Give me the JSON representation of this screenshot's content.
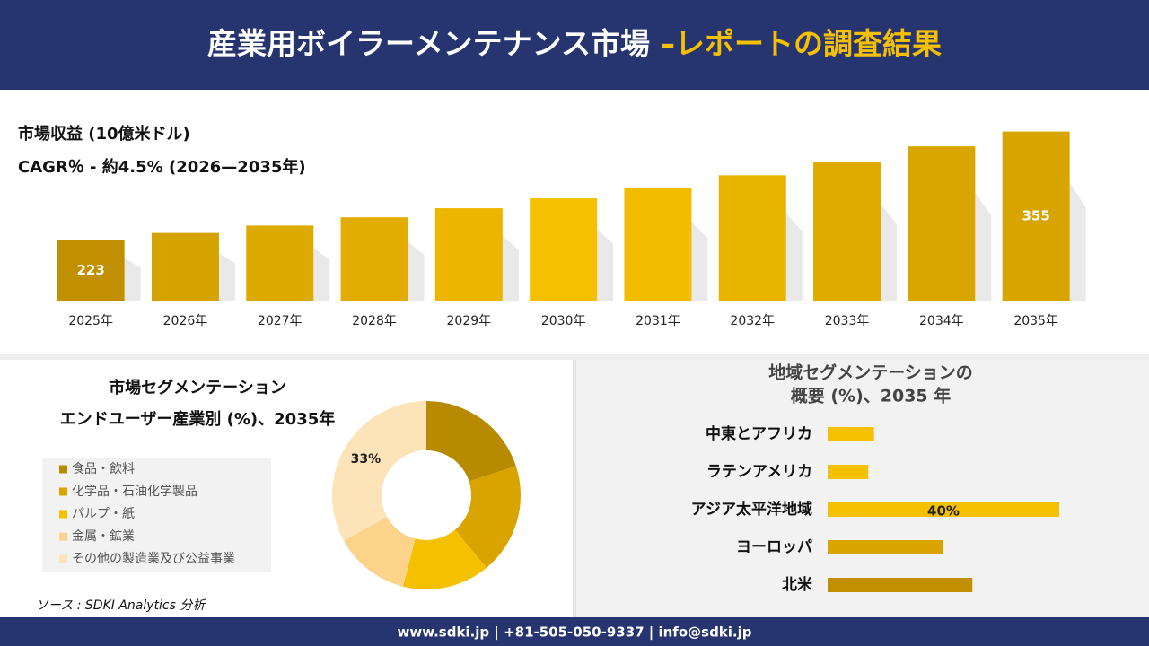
{
  "header": {
    "title_main": "産業用ボイラーメンテナンス市場 ",
    "title_accent": "–レポートの調査結果"
  },
  "chart_data": [
    {
      "type": "bar",
      "title": "市場収益 (10億米ドル)",
      "subtitle": "CAGR％ - 約4.5% (2026—2035年)",
      "categories": [
        "2025年",
        "2026年",
        "2027年",
        "2028年",
        "2029年",
        "2030年",
        "2031年",
        "2032年",
        "2033年",
        "2034年",
        "2035年"
      ],
      "values": [
        223,
        232,
        241,
        251,
        262,
        274,
        287,
        302,
        318,
        337,
        355
      ],
      "value_labels": [
        "223",
        null,
        null,
        null,
        null,
        null,
        null,
        null,
        null,
        null,
        "355"
      ],
      "colors": [
        "#c09000",
        "#d4a300",
        "#dcaa00",
        "#e2ad00",
        "#ecb600",
        "#f5c000",
        "#f2bd00",
        "#e8b400",
        "#e0ab00",
        "#d9a600",
        "#d8a400"
      ],
      "ylim": [
        150,
        360
      ]
    },
    {
      "type": "donut",
      "title": "市場セグメンテーション",
      "subtitle": "エンドユーザー産業別 (%)、2035年",
      "categories": [
        "食品・飲料",
        "化学品・石油化学製品",
        "パルプ・紙",
        "金属・鉱業",
        "その他の製造業及び公益事業"
      ],
      "values": [
        20,
        19,
        15,
        13,
        33
      ],
      "value_labels": [
        null,
        null,
        null,
        null,
        "33%"
      ],
      "colors": [
        "#b88a00",
        "#d9a400",
        "#f5c000",
        "#fbd38a",
        "#fde3b8"
      ]
    },
    {
      "type": "barh",
      "title": "地域セグメンテーションの",
      "subtitle": "概要 (%)、2035 年",
      "categories": [
        "中東とアフリカ",
        "ラテンアメリカ",
        "アジア太平洋地域",
        "ヨーロッパ",
        "北米"
      ],
      "values": [
        8,
        7,
        40,
        20,
        25
      ],
      "value_labels": [
        null,
        null,
        "40%",
        null,
        null
      ],
      "colors": [
        "#f5c000",
        "#f5c000",
        "#f5c000",
        "#d9a400",
        "#c09000"
      ],
      "xlim": [
        0,
        40
      ]
    }
  ],
  "source": "ソース : SDKI Analytics 分析",
  "footer": "www.sdki.jp | +81-505-050-9337 | info@sdki.jp"
}
